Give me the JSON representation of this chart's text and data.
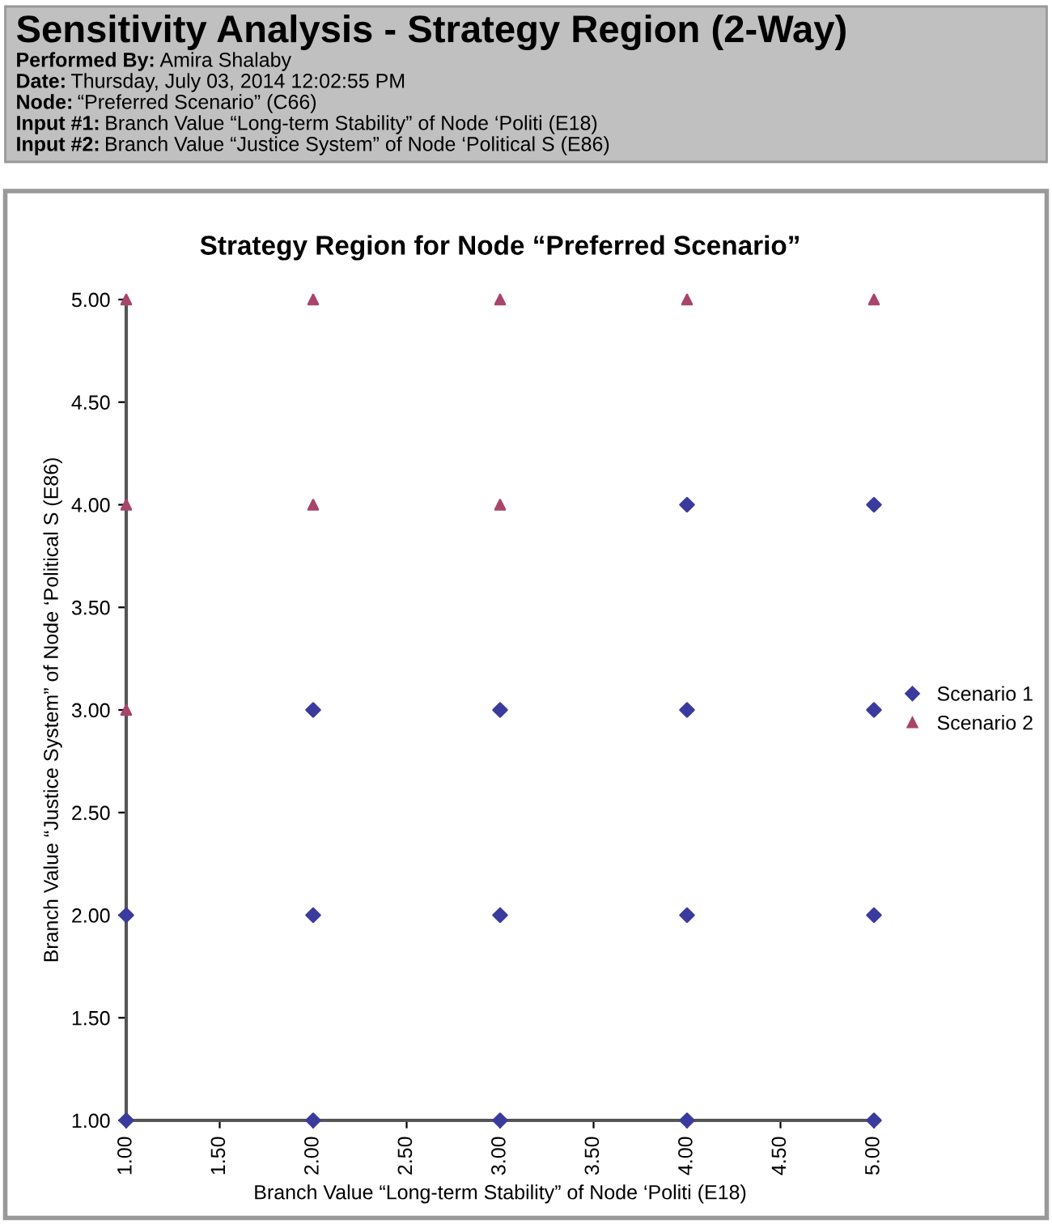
{
  "chart_data": {
    "type": "scatter",
    "title": "Sensitivity Analysis - Strategy Region (2-Way)",
    "subtitle": "Strategy Region for Node “Preferred Scenario”",
    "annotations": [
      "Performed By: Amira Shalaby",
      "Date: Thursday, July 03, 2014 12:02:55 PM",
      "Node: “Preferred Scenario” (C66)",
      "Input #1: Branch Value “Long-term Stability” of Node ‘Politi (E18)",
      "Input #2: Branch Value “Justice System” of Node ‘Political S (E86)"
    ],
    "xlabel": "Branch Value “Long-term Stability” of Node ‘Politi (E18)",
    "ylabel": "Branch Value “Justice System” of Node ‘Political S (E86)",
    "xlim": [
      1,
      5
    ],
    "ylim": [
      1,
      5
    ],
    "xticks": [
      {
        "value": 1,
        "label": "1.00"
      },
      {
        "value": 1.5,
        "label": "1.50"
      },
      {
        "value": 2,
        "label": "2.00"
      },
      {
        "value": 2.5,
        "label": "2.50"
      },
      {
        "value": 3,
        "label": "3.00"
      },
      {
        "value": 3.5,
        "label": "3.50"
      },
      {
        "value": 4,
        "label": "4.00"
      },
      {
        "value": 4.5,
        "label": "4.50"
      },
      {
        "value": 5,
        "label": "5.00"
      }
    ],
    "yticks": [
      {
        "value": 1,
        "label": "1.00"
      },
      {
        "value": 1.5,
        "label": "1.50"
      },
      {
        "value": 2,
        "label": "2.00"
      },
      {
        "value": 2.5,
        "label": "2.50"
      },
      {
        "value": 3,
        "label": "3.00"
      },
      {
        "value": 3.5,
        "label": "3.50"
      },
      {
        "value": 4,
        "label": "4.00"
      },
      {
        "value": 4.5,
        "label": "4.50"
      },
      {
        "value": 5,
        "label": "5.00"
      }
    ],
    "grid": false,
    "legend": "right",
    "series": [
      {
        "name": "Scenario 1",
        "color": "#3b3b9e",
        "marker": "diamond",
        "x": [
          4,
          5,
          2,
          3,
          4,
          5,
          1,
          2,
          3,
          4,
          5,
          1,
          2,
          3,
          4,
          5
        ],
        "values": [
          4,
          4,
          3,
          3,
          3,
          3,
          2,
          2,
          2,
          2,
          2,
          1,
          1,
          1,
          1,
          1
        ]
      },
      {
        "name": "Scenario 2",
        "color": "#a8456a",
        "marker": "triangle",
        "x": [
          1,
          2,
          3,
          4,
          5,
          1,
          2,
          3,
          1
        ],
        "values": [
          5,
          5,
          5,
          5,
          5,
          4,
          4,
          4,
          3
        ]
      }
    ]
  }
}
